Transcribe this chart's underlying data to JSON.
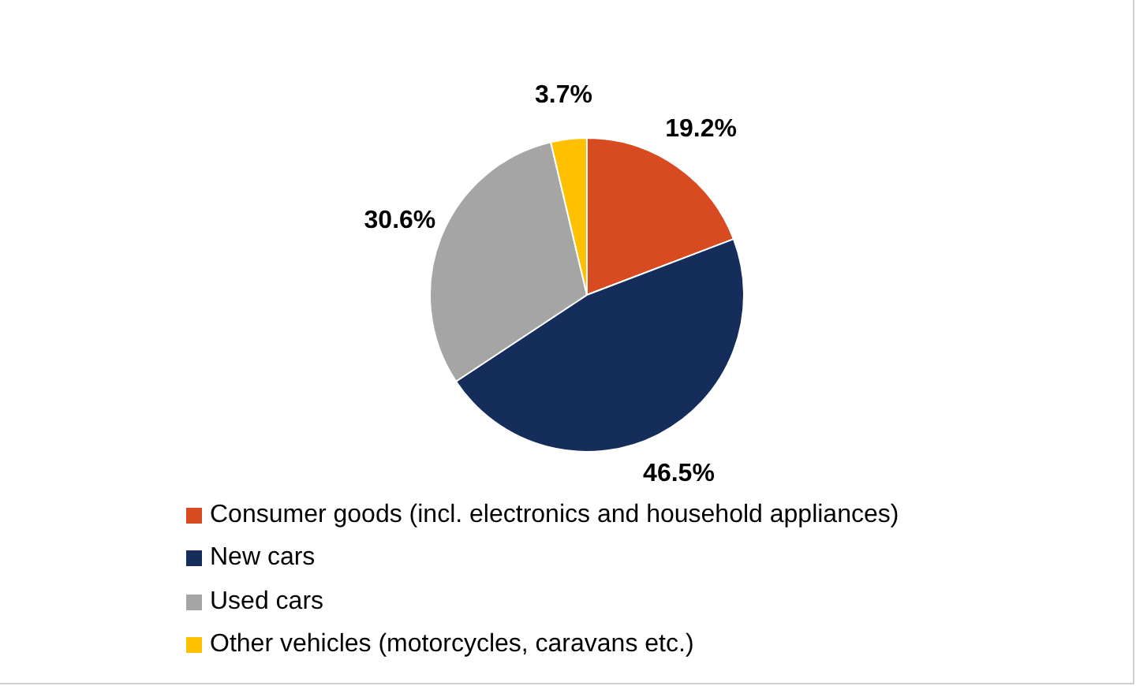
{
  "chart_data": {
    "type": "pie",
    "categories": [
      "Consumer goods (incl. electronics and household appliances)",
      "New cars",
      "Used cars",
      "Other vehicles (motorcycles, caravans etc.)"
    ],
    "values": [
      19.2,
      46.5,
      30.6,
      3.7
    ],
    "colors": [
      "#d84b20",
      "#142d5a",
      "#a5a5a5",
      "#ffc000"
    ],
    "value_labels": [
      "19.2%",
      "46.5%",
      "30.6%",
      "3.7%"
    ],
    "legend": "bottom"
  }
}
